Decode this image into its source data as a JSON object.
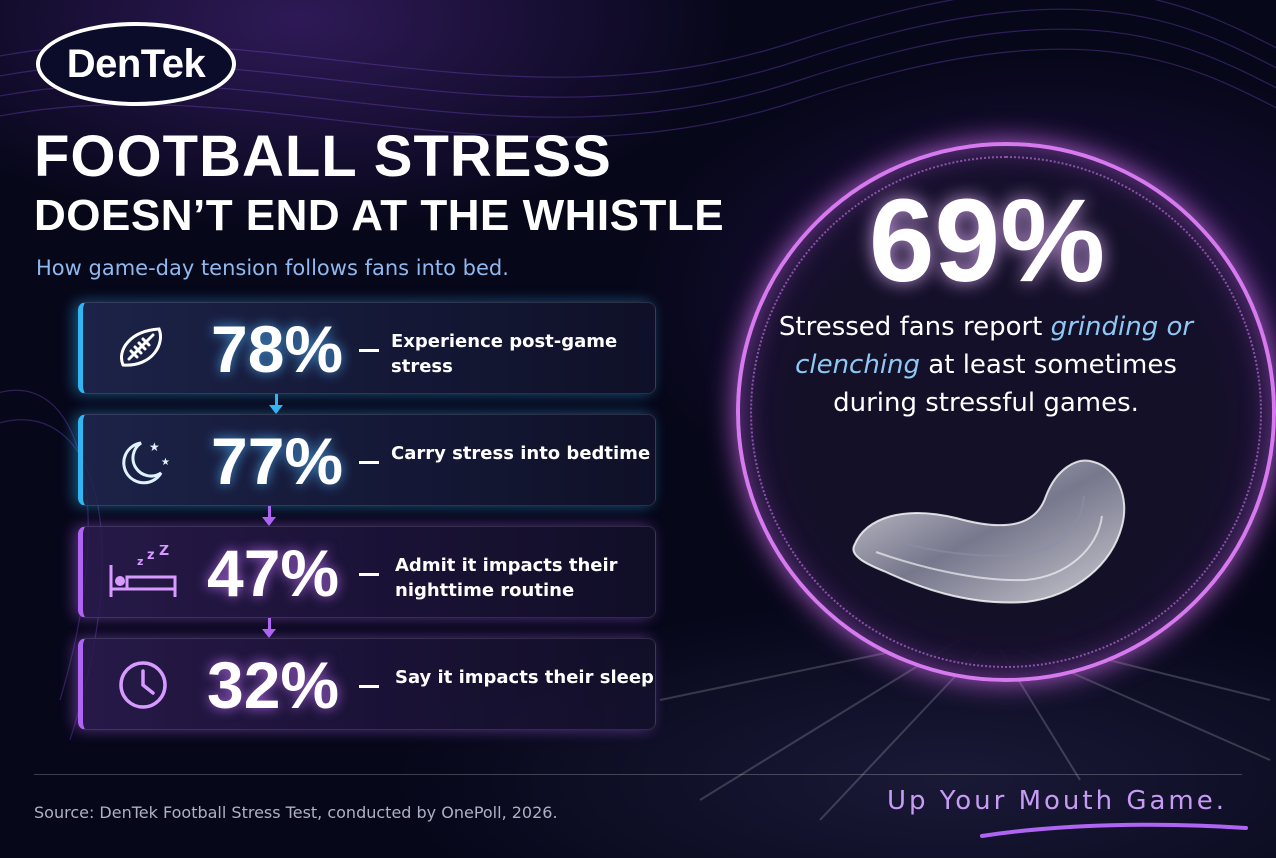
{
  "brand": {
    "logo_text": "DenTek"
  },
  "headline": {
    "line1": "FOOTBALL STRESS",
    "line2": "DOESN’T END AT THE WHISTLE",
    "subtitle": "How game-day tension follows fans into bed."
  },
  "stats": [
    {
      "icon": "football-icon",
      "value": "78%",
      "label": "Experience post-game stress",
      "accent": "#31b6f2"
    },
    {
      "icon": "moon-stars-icon",
      "value": "77%",
      "label": "Carry stress into bedtime",
      "accent": "#31b6f2"
    },
    {
      "icon": "bed-sleep-icon",
      "value": "47%",
      "label": "Admit it impacts their nighttime routine",
      "accent": "#b064f4"
    },
    {
      "icon": "clock-icon",
      "value": "32%",
      "label": "Say it impacts their sleep",
      "accent": "#b064f4"
    }
  ],
  "feature": {
    "value": "69%",
    "text_before": "Stressed fans report ",
    "text_highlight": "grinding or clenching",
    "text_after": " at least sometimes during stressful games.",
    "ring_color": "#d779ef",
    "highlight_color": "#8ec8f4"
  },
  "footer": {
    "source": "Source: DenTek Football Stress Test, conducted by OnePoll, 2026.",
    "tagline": "Up Your Mouth Game."
  }
}
